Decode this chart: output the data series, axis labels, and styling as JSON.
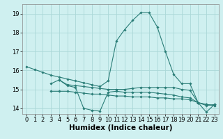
{
  "bg_color": "#cff0f0",
  "line_color": "#2a7d77",
  "grid_color": "#aad8d8",
  "xlabel": "Humidex (Indice chaleur)",
  "xlabel_fontsize": 7.5,
  "tick_fontsize": 6,
  "xlim": [
    -0.5,
    23.5
  ],
  "ylim": [
    13.7,
    19.5
  ],
  "yticks": [
    14,
    15,
    16,
    17,
    18,
    19
  ],
  "xticks": [
    0,
    1,
    2,
    3,
    4,
    5,
    6,
    7,
    8,
    9,
    10,
    11,
    12,
    13,
    14,
    15,
    16,
    17,
    18,
    19,
    20,
    21,
    22,
    23
  ],
  "series": [
    {
      "x": [
        0,
        1,
        2,
        3,
        4,
        5,
        6,
        7,
        8,
        9,
        10,
        11,
        12,
        13,
        14,
        15,
        16,
        17,
        18,
        19,
        20,
        21,
        22,
        23
      ],
      "y": [
        16.2,
        16.05,
        15.9,
        15.75,
        15.65,
        15.55,
        15.45,
        15.35,
        15.25,
        15.15,
        15.45,
        17.55,
        18.15,
        18.65,
        19.05,
        19.05,
        18.3,
        17.0,
        15.8,
        15.3,
        15.3,
        14.3,
        14.15,
        14.2
      ]
    },
    {
      "x": [
        3,
        4,
        5,
        6,
        7,
        8,
        9,
        10,
        11,
        12,
        13,
        14,
        15,
        16,
        17,
        18,
        19,
        20,
        21,
        22,
        23
      ],
      "y": [
        15.3,
        15.5,
        15.25,
        15.2,
        15.15,
        15.1,
        15.05,
        15.0,
        15.0,
        15.0,
        15.05,
        15.1,
        15.1,
        15.1,
        15.1,
        15.1,
        15.0,
        14.95,
        14.3,
        14.2,
        14.15
      ]
    },
    {
      "x": [
        3,
        4,
        5,
        6,
        7,
        8,
        9,
        10,
        11,
        12,
        13,
        14,
        15,
        16,
        17,
        18,
        19,
        20,
        21,
        22,
        23
      ],
      "y": [
        14.9,
        14.9,
        14.9,
        14.85,
        14.8,
        14.75,
        14.75,
        14.7,
        14.65,
        14.65,
        14.6,
        14.6,
        14.6,
        14.55,
        14.55,
        14.5,
        14.5,
        14.45,
        14.3,
        14.2,
        14.15
      ]
    },
    {
      "x": [
        4,
        5,
        6,
        7,
        8,
        9,
        10,
        11,
        12,
        13,
        14,
        15,
        16,
        17,
        18,
        19,
        20,
        21,
        22,
        23
      ],
      "y": [
        15.5,
        15.2,
        15.1,
        14.0,
        13.9,
        13.85,
        14.85,
        14.9,
        14.85,
        14.85,
        14.85,
        14.85,
        14.8,
        14.75,
        14.7,
        14.6,
        14.55,
        14.3,
        13.8,
        14.2
      ]
    }
  ]
}
